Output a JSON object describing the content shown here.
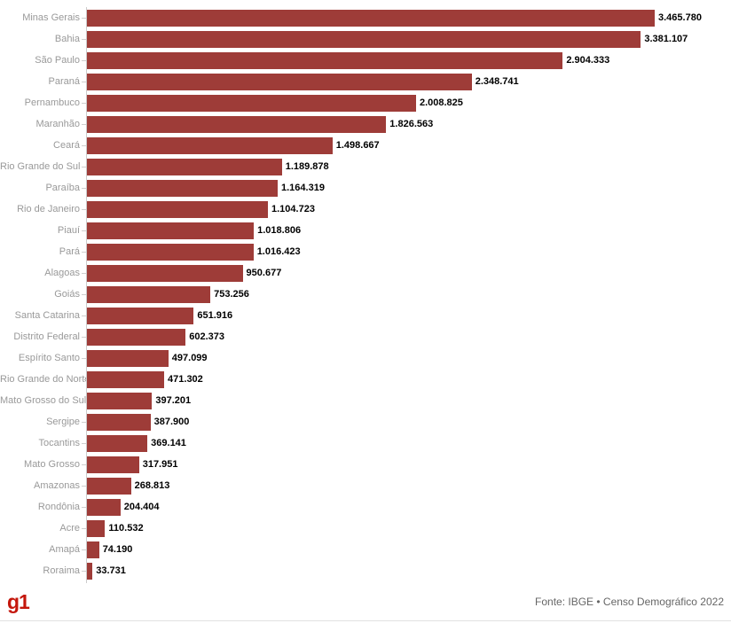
{
  "chart_data": {
    "type": "bar",
    "orientation": "horizontal",
    "title": "",
    "xlabel": "",
    "ylabel": "",
    "legend": null,
    "grid": false,
    "bar_color": "#9e3c38",
    "axis_color": "#cccccc",
    "categories": [
      "Minas Gerais",
      "Bahia",
      "São Paulo",
      "Paraná",
      "Pernambuco",
      "Maranhão",
      "Ceará",
      "Rio Grande do Sul",
      "Paraíba",
      "Rio de Janeiro",
      "Piauí",
      "Pará",
      "Alagoas",
      "Goiás",
      "Santa Catarina",
      "Distrito Federal",
      "Espírito Santo",
      "Rio Grande do Norte",
      "Mato Grosso do Sul",
      "Sergipe",
      "Tocantins",
      "Mato Grosso",
      "Amazonas",
      "Rondônia",
      "Acre",
      "Amapá",
      "Roraima"
    ],
    "values": [
      3465780,
      3381107,
      2904333,
      2348741,
      2008825,
      1826563,
      1498667,
      1189878,
      1164319,
      1104723,
      1018806,
      1016423,
      950677,
      753256,
      651916,
      602373,
      497099,
      471302,
      397201,
      387900,
      369141,
      317951,
      268813,
      204404,
      110532,
      74190,
      33731
    ],
    "value_labels": [
      "3.465.780",
      "3.381.107",
      "2.904.333",
      "2.348.741",
      "2.008.825",
      "1.826.563",
      "1.498.667",
      "1.189.878",
      "1.164.319",
      "1.104.723",
      "1.018.806",
      "1.016.423",
      "950.677",
      "753.256",
      "651.916",
      "602.373",
      "497.099",
      "471.302",
      "397.201",
      "387.900",
      "369.141",
      "317.951",
      "268.813",
      "204.404",
      "110.532",
      "74.190",
      "33.731"
    ],
    "xlim": [
      0,
      3465780
    ]
  },
  "footer": {
    "logo": "g1",
    "logo_color": "#c4170c",
    "source": "Fonte: IBGE • Censo Demográfico 2022"
  }
}
